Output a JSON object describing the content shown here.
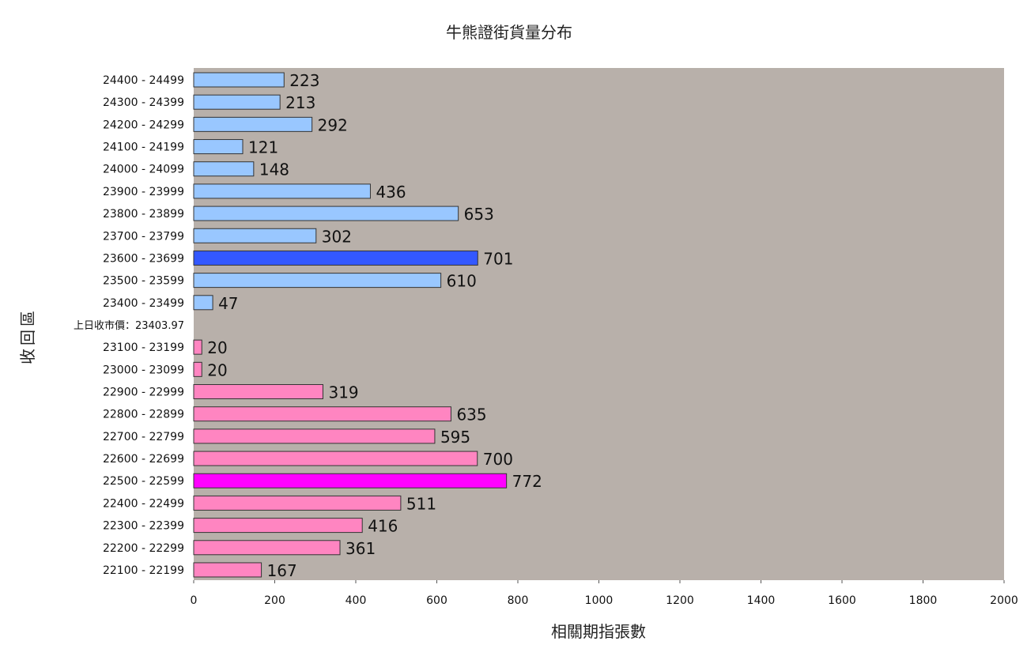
{
  "chart_data": {
    "type": "bar",
    "orientation": "horizontal",
    "title": "牛熊證街貨量分布",
    "xlabel": "相關期指張數",
    "ylabel": "收回區",
    "xlim": [
      0,
      2000
    ],
    "x_ticks": [
      "0",
      "200",
      "400",
      "600",
      "800",
      "1000",
      "1200",
      "1400",
      "1600",
      "1800",
      "2000"
    ],
    "reference_label": "上日收市價：23403.97",
    "reference_category_index": 11,
    "grid": false,
    "legend": "none",
    "colors": {
      "bear": "#99c7ff",
      "bear_highlight": "#3358ff",
      "bull": "#ff85c1",
      "bull_highlight": "#ff00ff",
      "plot_background": "#b8b0aa",
      "bar_border": "#333333"
    },
    "categories": [
      "24400 - 24499",
      "24300 - 24399",
      "24200 - 24299",
      "24100 - 24199",
      "24000 - 24099",
      "23900 - 23999",
      "23800 - 23899",
      "23700 - 23799",
      "23600 - 23699",
      "23500 - 23599",
      "23400 - 23499",
      "",
      "23100 - 23199",
      "23000 - 23099",
      "22900 - 22999",
      "22800 - 22899",
      "22700 - 22799",
      "22600 - 22699",
      "22500 - 22599",
      "22400 - 22499",
      "22300 - 22399",
      "22200 - 22299",
      "22100 - 22199"
    ],
    "values": [
      223,
      213,
      292,
      121,
      148,
      436,
      653,
      302,
      701,
      610,
      47,
      null,
      20,
      20,
      319,
      635,
      595,
      700,
      772,
      511,
      416,
      361,
      167
    ],
    "bar_type": [
      "bear",
      "bear",
      "bear",
      "bear",
      "bear",
      "bear",
      "bear",
      "bear",
      "bear_highlight",
      "bear",
      "bear",
      null,
      "bull",
      "bull",
      "bull",
      "bull",
      "bull",
      "bull",
      "bull_highlight",
      "bull",
      "bull",
      "bull",
      "bull"
    ]
  }
}
